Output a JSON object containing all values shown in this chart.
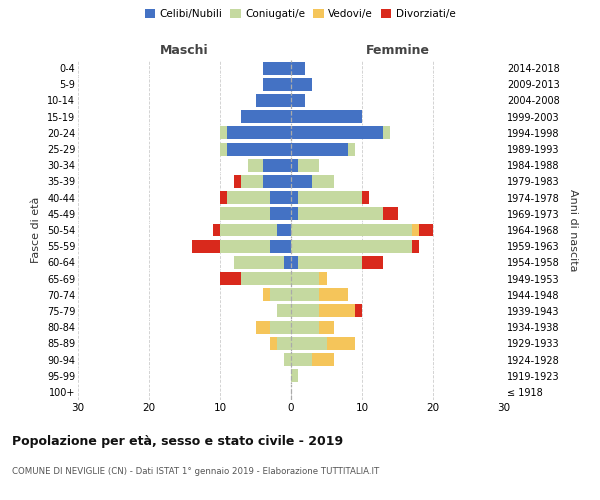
{
  "age_groups": [
    "100+",
    "95-99",
    "90-94",
    "85-89",
    "80-84",
    "75-79",
    "70-74",
    "65-69",
    "60-64",
    "55-59",
    "50-54",
    "45-49",
    "40-44",
    "35-39",
    "30-34",
    "25-29",
    "20-24",
    "15-19",
    "10-14",
    "5-9",
    "0-4"
  ],
  "birth_years": [
    "≤ 1918",
    "1919-1923",
    "1924-1928",
    "1929-1933",
    "1934-1938",
    "1939-1943",
    "1944-1948",
    "1949-1953",
    "1954-1958",
    "1959-1963",
    "1964-1968",
    "1969-1973",
    "1974-1978",
    "1979-1983",
    "1984-1988",
    "1989-1993",
    "1994-1998",
    "1999-2003",
    "2004-2008",
    "2009-2013",
    "2014-2018"
  ],
  "maschi": {
    "celibi": [
      0,
      0,
      0,
      0,
      0,
      0,
      0,
      0,
      1,
      3,
      2,
      3,
      3,
      4,
      4,
      9,
      9,
      7,
      5,
      4,
      4
    ],
    "coniugati": [
      0,
      0,
      1,
      2,
      3,
      2,
      3,
      7,
      7,
      7,
      8,
      7,
      6,
      3,
      2,
      1,
      1,
      0,
      0,
      0,
      0
    ],
    "vedovi": [
      0,
      0,
      0,
      1,
      2,
      0,
      1,
      0,
      0,
      0,
      0,
      0,
      0,
      0,
      0,
      0,
      0,
      0,
      0,
      0,
      0
    ],
    "divorziati": [
      0,
      0,
      0,
      0,
      0,
      0,
      0,
      3,
      0,
      4,
      1,
      0,
      1,
      1,
      0,
      0,
      0,
      0,
      0,
      0,
      0
    ]
  },
  "femmine": {
    "nubili": [
      0,
      0,
      0,
      0,
      0,
      0,
      0,
      0,
      1,
      0,
      0,
      1,
      1,
      3,
      1,
      8,
      13,
      10,
      2,
      3,
      2
    ],
    "coniugate": [
      0,
      1,
      3,
      5,
      4,
      4,
      4,
      4,
      9,
      17,
      17,
      12,
      9,
      3,
      3,
      1,
      1,
      0,
      0,
      0,
      0
    ],
    "vedove": [
      0,
      0,
      3,
      4,
      2,
      5,
      4,
      1,
      0,
      0,
      1,
      0,
      0,
      0,
      0,
      0,
      0,
      0,
      0,
      0,
      0
    ],
    "divorziate": [
      0,
      0,
      0,
      0,
      0,
      1,
      0,
      0,
      3,
      1,
      2,
      2,
      1,
      0,
      0,
      0,
      0,
      0,
      0,
      0,
      0
    ]
  },
  "color_celibi": "#4472C4",
  "color_coniugati": "#c5d9a0",
  "color_vedovi": "#f5c55a",
  "color_divorziati": "#d9291c",
  "title": "Popolazione per età, sesso e stato civile - 2019",
  "subtitle": "COMUNE DI NEVIGLIE (CN) - Dati ISTAT 1° gennaio 2019 - Elaborazione TUTTITALIA.IT",
  "ylabel_left": "Fasce di età",
  "ylabel_right": "Anni di nascita",
  "xlim": 30,
  "bar_height": 0.8,
  "maschi_label": "Maschi",
  "femmine_label": "Femmine",
  "legend_labels": [
    "Celibi/Nubili",
    "Coniugati/e",
    "Vedovi/e",
    "Divorziati/e"
  ]
}
